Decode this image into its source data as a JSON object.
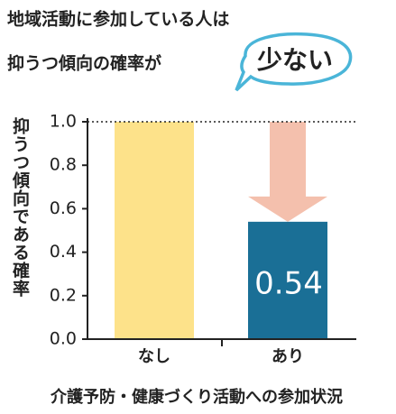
{
  "chart_data": {
    "type": "bar",
    "title_lines": [
      "地域活動に参加している人は",
      "抑うつ傾向の確率が"
    ],
    "highlight": "少ない",
    "ylabel": "抑うつ傾向である確率",
    "xlabel": "介護予防・健康づくり活動への参加状況",
    "categories": [
      "なし",
      "あり"
    ],
    "values": [
      1.0,
      0.54
    ],
    "colors": [
      "#fde28a",
      "#1a6f96"
    ],
    "ylim": [
      0,
      1.0
    ],
    "yticks": [
      {
        "value": 0,
        "label": "0.0"
      },
      {
        "value": 0.2,
        "label": "0.2"
      },
      {
        "value": 0.4,
        "label": "0.4"
      },
      {
        "value": 0.6,
        "label": "0.6"
      },
      {
        "value": 0.8,
        "label": "0.8"
      },
      {
        "value": 1.0,
        "label": "1.0"
      }
    ],
    "reference_line": 1.0,
    "grid": false
  }
}
